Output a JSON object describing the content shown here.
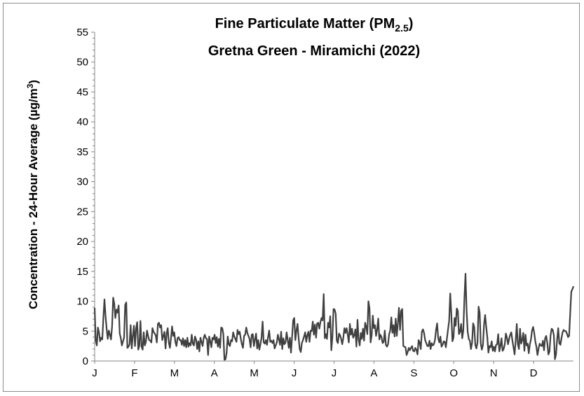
{
  "chart_data": {
    "type": "line",
    "title_line1": "Fine Particulate Matter (PM",
    "title_sub": "2.5",
    "title_close": ")",
    "title_line2": "Gretna Green - Miramichi (2022)",
    "ylabel_main": "Concentration - 24-Hour Average (µg/m",
    "ylabel_sup": "3",
    "ylabel_close": ")",
    "xlabel": "",
    "ylim": [
      0,
      55
    ],
    "y_ticks": [
      "0",
      "5",
      "10",
      "15",
      "20",
      "25",
      "30",
      "35",
      "40",
      "45",
      "50",
      "55"
    ],
    "x_ticks": [
      "J",
      "F",
      "M",
      "A",
      "M",
      "J",
      "J",
      "A",
      "S",
      "O",
      "N",
      "D"
    ],
    "grid": false,
    "legend": "none",
    "colors": {
      "series": "#404040",
      "axis": "#868686"
    },
    "series": [
      {
        "values": [
          8.9,
          3.4,
          2.6,
          5.6,
          4.8,
          3.3,
          3.9,
          3.6,
          7.2,
          10.3,
          7.5,
          5.4,
          3.7,
          5.1,
          4.4,
          3.6,
          5.8,
          10.6,
          9.6,
          7.2,
          8.6,
          8.1,
          9.3,
          4.6,
          3.8,
          2.6,
          3.3,
          3.9,
          9.4,
          9.8,
          2.2,
          2.4,
          2.8,
          6.0,
          2.1,
          4.2,
          5.9,
          2.5,
          5.5,
          6.5,
          1.9,
          2.6,
          6.7,
          2.4,
          1.9,
          4.8,
          2.6,
          3.2,
          5.1,
          4.2,
          3.5,
          3.4,
          3.1,
          5.5,
          4.9,
          4.6,
          4.3,
          3.1,
          6.2,
          6.4,
          5.6,
          6.0,
          3.5,
          4.2,
          4.9,
          2.1,
          4.6,
          5.5,
          3.1,
          2.2,
          3.8,
          5.8,
          4.2,
          4.8,
          3.2,
          2.5,
          3.8,
          4.0,
          3.5,
          3.5,
          2.7,
          3.8,
          2.5,
          3.5,
          2.3,
          3.9,
          2.4,
          3.0,
          2.6,
          4.4,
          2.9,
          2.6,
          4.1,
          3.6,
          2.0,
          3.3,
          1.6,
          3.9,
          3.2,
          2.5,
          3.9,
          4.4,
          3.8,
          3.7,
          1.0,
          4.1,
          3.3,
          2.3,
          3.9,
          3.6,
          4.4,
          3.0,
          4.0,
          2.4,
          3.7,
          2.2,
          5.6,
          5.5,
          4.5,
          0.2,
          0.3,
          1.4,
          4.1,
          2.8,
          2.5,
          3.5,
          3.3,
          4.8,
          4.1,
          3.7,
          3.2,
          5.2,
          4.5,
          4.9,
          3.7,
          2.8,
          2.2,
          4.2,
          4.4,
          5.6,
          4.7,
          4.2,
          3.7,
          2.3,
          4.4,
          4.5,
          2.5,
          3.6,
          4.6,
          2.1,
          3.5,
          1.9,
          2.8,
          3.9,
          6.6,
          3.1,
          2.9,
          3.5,
          2.7,
          4.0,
          5.1,
          3.2,
          3.4,
          3.0,
          3.5,
          2.1,
          2.6,
          3.1,
          4.4,
          3.6,
          2.7,
          4.9,
          2.0,
          3.8,
          2.8,
          3.1,
          4.8,
          3.5,
          2.2,
          3.9,
          1.4,
          4.0,
          6.8,
          7.2,
          3.5,
          5.1,
          6.2,
          3.9,
          2.0,
          1.5,
          3.0,
          3.5,
          4.1,
          4.8,
          3.2,
          4.3,
          4.9,
          3.2,
          5.1,
          5.0,
          6.6,
          4.4,
          6.1,
          3.9,
          6.3,
          6.4,
          5.4,
          6.5,
          7.2,
          6.8,
          11.2,
          3.8,
          4.5,
          3.7,
          6.4,
          5.6,
          7.5,
          1.8,
          4.0,
          8.7,
          8.6,
          7.9,
          3.4,
          3.0,
          4.6,
          4.3,
          3.7,
          2.8,
          3.9,
          5.5,
          4.7,
          5.5,
          4.4,
          3.1,
          6.2,
          4.4,
          5.4,
          3.9,
          4.3,
          5.3,
          2.4,
          6.9,
          3.6,
          2.6,
          4.7,
          3.7,
          5.4,
          3.4,
          6.4,
          5.7,
          4.5,
          10.0,
          8.8,
          3.1,
          4.3,
          7.6,
          5.5,
          6.0,
          4.2,
          5.3,
          7.1,
          3.6,
          4.4,
          4.0,
          3.0,
          3.2,
          5.1,
          2.7,
          2.4,
          2.8,
          4.5,
          5.1,
          7.3,
          4.7,
          6.0,
          4.1,
          7.1,
          4.2,
          6.3,
          8.9,
          5.2,
          8.4,
          8.7,
          2.5,
          2.4,
          2.3,
          1.0,
          1.5,
          2.2,
          1.8,
          2.2,
          2.5,
          1.7,
          1.6,
          2.2,
          1.9,
          1.1,
          3.5,
          3.1,
          2.0,
          4.9,
          5.3,
          4.7,
          3.5,
          3.0,
          2.5,
          2.5,
          3.4,
          2.0,
          3.0,
          2.6,
          2.8,
          3.5,
          5.2,
          6.3,
          3.8,
          3.1,
          4.1,
          2.4,
          2.7,
          3.3,
          3.2,
          2.3,
          3.8,
          5.3,
          6.7,
          11.3,
          7.9,
          3.3,
          3.9,
          7.2,
          5.9,
          8.8,
          8.4,
          4.5,
          4.9,
          6.2,
          3.8,
          5.1,
          10.5,
          14.6,
          8.4,
          4.9,
          3.7,
          3.4,
          2.0,
          3.0,
          6.3,
          5.7,
          2.7,
          2.1,
          3.1,
          9.1,
          8.1,
          2.9,
          1.9,
          2.7,
          6.1,
          7.7,
          5.7,
          4.0,
          1.4,
          2.5,
          2.3,
          3.3,
          1.7,
          2.4,
          1.6,
          2.7,
          2.8,
          4.5,
          1.6,
          2.5,
          3.8,
          1.7,
          2.0,
          2.8,
          4.6,
          3.9,
          2.8,
          3.7,
          4.4,
          4.8,
          3.4,
          2.3,
          1.1,
          3.4,
          6.2,
          2.8,
          2.0,
          5.4,
          2.9,
          3.5,
          4.7,
          1.7,
          4.4,
          2.6,
          2.9,
          1.3,
          2.8,
          3.6,
          5.1,
          5.7,
          4.7,
          3.3,
          2.4,
          1.0,
          2.1,
          2.9,
          2.6,
          2.5,
          3.4,
          1.8,
          3.8,
          4.2,
          3.0,
          1.1,
          1.6,
          4.3,
          5.4,
          5.2,
          4.3,
          0.3,
          1.1,
          3.6,
          5.5,
          3.0,
          2.7,
          3.8,
          4.8,
          5.2,
          5.0,
          5.0,
          4.6,
          4.0,
          4.2,
          8.0,
          11.6,
          12.0,
          12.5
        ]
      }
    ]
  }
}
